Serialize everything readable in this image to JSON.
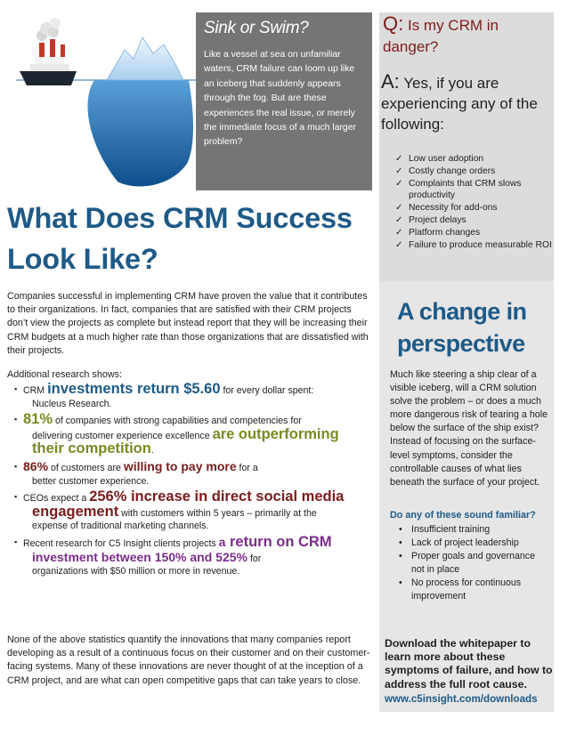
{
  "sink": {
    "title": "Sink or Swim?",
    "text": "Like a vessel at sea on unfamiliar waters, CRM failure can loom up like an iceberg that suddenly appears through the fog. But are these experiences the real issue, or merely the immediate focus of a much larger problem?"
  },
  "question": {
    "letter": "Q:",
    "text": "Is my CRM in danger?"
  },
  "answer": {
    "letter": "A:",
    "text": "Yes, if you are experiencing any of the following:"
  },
  "checklist": [
    "Low user adoption",
    "Costly change orders",
    "Complaints that CRM slows productivity",
    "Necessity for add-ons",
    "Project delays",
    "Platform changes",
    "Failure to produce measurable ROI"
  ],
  "headline": "What Does CRM Success Look Like?",
  "intro": "Companies successful in implementing CRM have proven the value that it contributes to their organizations.  In fact, companies that are satisfied with their CRM projects don’t view the projects as complete but instead report that they will be increasing their CRM budgets at a much higher rate than those organizations that are dissatisfied with their projects.",
  "additional": "Additional research shows:",
  "stats": {
    "s1": {
      "a": "CRM ",
      "b": "investments return $5.60",
      "c": " for every dollar spent:",
      "d": "Nucleus Research."
    },
    "s2": {
      "a": "81%",
      "b": " of companies with strong capabilities and competencies for",
      "c": "delivering customer experience excellence ",
      "d": "are outperforming",
      "e": "their competition",
      "f": "."
    },
    "s3": {
      "a": "86%",
      "b": " of customers are ",
      "c": "willing to pay more",
      "d": " for a",
      "e": "better customer experience."
    },
    "s4": {
      "a": "CEOs expect a ",
      "b": "256% increase in direct social media",
      "c": "engagement",
      "d": " with customers within 5 years – primarily at the",
      "e": "expense of traditional marketing channels."
    },
    "s5": {
      "a": "Recent research for C5 Insight clients projects ",
      "b": "a",
      "c": " return on CRM",
      "d": "investment between 150% and 525%",
      "e": " for",
      "f": "organizations with $50 million or more in revenue."
    }
  },
  "outro": "None of the above statistics quantify the innovations that many companies report developing as a result of a continuous focus on their customer and on their customer-facing systems.  Many of these innovations are never thought of at the inception of a CRM project, and are what can open competitive gaps that can take years to close.",
  "change": {
    "title": "A change in perspective",
    "text": "Much like steering a ship clear of a visible iceberg, will a CRM solution solve the problem – or does a much more dangerous risk of tearing a hole below the surface of the ship exist? Instead of focusing on the surface-level symptoms, consider the controllable causes of what lies beneath the surface of your project."
  },
  "familiar": {
    "title": "Do any of these sound familiar?",
    "items": [
      "Insufficient training",
      "Lack of project leadership",
      "Proper goals and governance not in place",
      "No process for continuous improvement"
    ]
  },
  "download": {
    "text": "Download the whitepaper to learn more about these symptoms of failure, and how to address the full root cause.",
    "url": "www.c5insight.com/downloads"
  },
  "colors": {
    "blue": "#1e5a87",
    "red": "#7b1c1c",
    "olive": "#7a8a23",
    "purple": "#7a2d8a",
    "gray": "#757575"
  }
}
